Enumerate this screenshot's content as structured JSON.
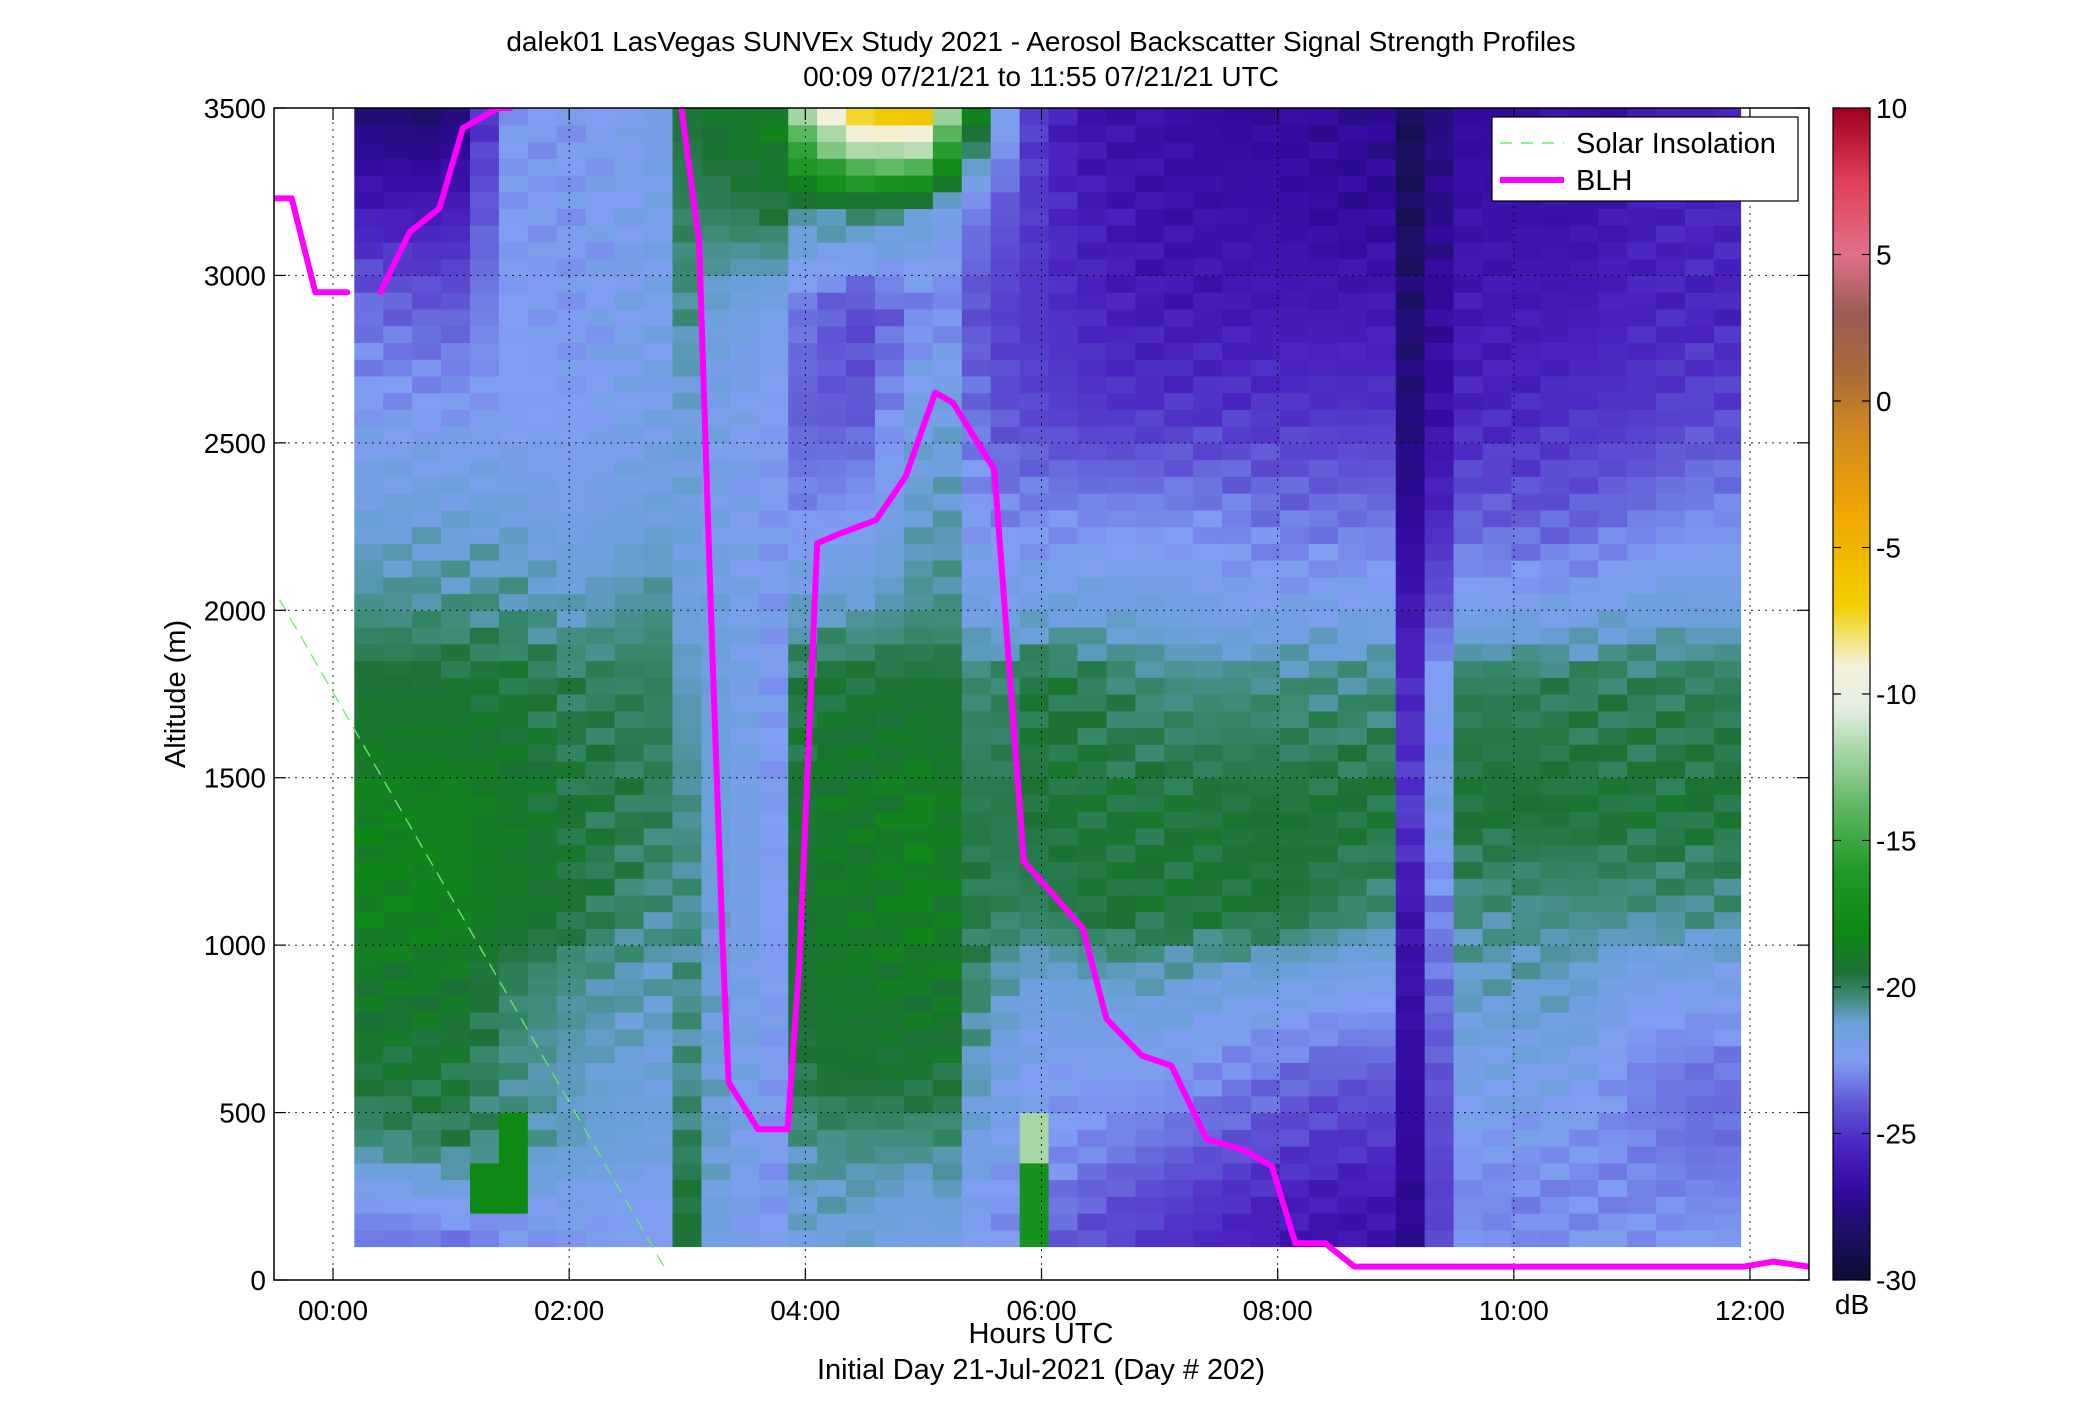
{
  "chart_data": {
    "type": "heatmap",
    "title": "dalek01 LasVegas SUNVEx Study 2021 - Aerosol Backscatter Signal Strength Profiles",
    "subtitle": "00:09 07/21/21 to 11:55 07/21/21  UTC",
    "xlabel": "Hours UTC",
    "xlabel2": "Initial Day 21-Jul-2021 (Day # 202)",
    "ylabel": "Altitude (m)",
    "xlim": [
      -0.5,
      12.5
    ],
    "ylim": [
      0,
      3500
    ],
    "xticks": [
      0,
      2,
      4,
      6,
      8,
      10,
      12
    ],
    "xtick_labels": [
      "00:00",
      "02:00",
      "04:00",
      "06:00",
      "08:00",
      "10:00",
      "12:00"
    ],
    "yticks": [
      0,
      500,
      1000,
      1500,
      2000,
      2500,
      3000,
      3500
    ],
    "ytick_labels": [
      "0",
      "500",
      "1000",
      "1500",
      "2000",
      "2500",
      "3000",
      "3500"
    ],
    "grid": true,
    "legend_position": "top-right",
    "colorbar": {
      "label": "dB",
      "range": [
        -30,
        10
      ],
      "ticks": [
        -30,
        -25,
        -20,
        -15,
        -10,
        -5,
        0,
        5,
        10
      ],
      "tick_labels": [
        "-30",
        "-25",
        "-20",
        "-15",
        "-10",
        "-5",
        "0",
        "5",
        "10"
      ],
      "stops": [
        [
          -30,
          "#0d0d35"
        ],
        [
          -28.5,
          "#1b1060"
        ],
        [
          -27,
          "#320a9e"
        ],
        [
          -25.5,
          "#4a22c0"
        ],
        [
          -24,
          "#6058d6"
        ],
        [
          -22.5,
          "#7f9ef2"
        ],
        [
          -21.2,
          "#6aa0d8"
        ],
        [
          -20.4,
          "#3f8d7c"
        ],
        [
          -19.5,
          "#1c7235"
        ],
        [
          -18,
          "#0d8a13"
        ],
        [
          -16,
          "#229a29"
        ],
        [
          -14,
          "#58b55e"
        ],
        [
          -12,
          "#a5d6a3"
        ],
        [
          -10.5,
          "#e4eee4"
        ],
        [
          -9,
          "#f5f0d8"
        ],
        [
          -7,
          "#f2d000"
        ],
        [
          -4,
          "#f0a800"
        ],
        [
          -1,
          "#d08820"
        ],
        [
          1,
          "#a86a3a"
        ],
        [
          3,
          "#9c5c56"
        ],
        [
          5,
          "#e07088"
        ],
        [
          7.5,
          "#e0405a"
        ],
        [
          10,
          "#a00020"
        ]
      ]
    },
    "heatmap": {
      "x_start": 0.18,
      "x_end": 11.92,
      "y_start": 100,
      "y_end": 3500,
      "bin_height_m": 50,
      "bin_width_h": 0.245,
      "profile_hours": [
        0.0,
        0.25,
        1.0,
        1.5,
        2.0,
        2.75,
        3.0,
        3.3,
        3.75,
        4.0,
        4.5,
        5.0,
        5.25,
        5.5,
        6.0,
        6.5,
        7.0,
        7.5,
        8.0,
        8.5,
        9.0,
        9.15,
        9.5,
        10.0,
        10.5,
        11.0,
        11.5,
        12.0
      ],
      "level_altitudes_m": [
        100,
        250,
        400,
        600,
        900,
        1100,
        1400,
        1800,
        2000,
        2300,
        2600,
        2900,
        3200,
        3500
      ],
      "profiles_db": [
        [
          -23.5,
          -22.5,
          -20.5,
          -19.5,
          -19,
          -18.5,
          -18.5,
          -19.5,
          -20.5,
          -21.5,
          -22.5,
          -23.5,
          -26,
          -28
        ],
        [
          -23.5,
          -22.5,
          -20.5,
          -19.5,
          -19,
          -18.5,
          -18.5,
          -19.5,
          -20.5,
          -21.5,
          -22.5,
          -23.5,
          -26,
          -28
        ],
        [
          -23.5,
          -22,
          -20,
          -19.5,
          -19,
          -18.5,
          -18.5,
          -19.5,
          -20.5,
          -21.5,
          -22.5,
          -24,
          -26,
          -28.5
        ],
        [
          -23,
          -22,
          -20.5,
          -20.5,
          -20,
          -19,
          -19,
          -19.5,
          -20.5,
          -21.5,
          -22.5,
          -22.5,
          -22.5,
          -22.5
        ],
        [
          -22.5,
          -22,
          -21,
          -21,
          -20.5,
          -19.5,
          -19.5,
          -20,
          -21,
          -22,
          -22.5,
          -22.5,
          -22.5,
          -22.5
        ],
        [
          -22.5,
          -22.5,
          -21.5,
          -21.5,
          -21,
          -20.5,
          -20,
          -20,
          -20.5,
          -21.5,
          -22,
          -22,
          -22,
          -22
        ],
        [
          -19.5,
          -19.5,
          -20,
          -20.5,
          -20.5,
          -20.5,
          -20.5,
          -21,
          -21.5,
          -21.5,
          -21.5,
          -20.5,
          -20,
          -19.5
        ],
        [
          -22,
          -22,
          -21.5,
          -21.5,
          -21.5,
          -21.5,
          -21.5,
          -21.5,
          -21.5,
          -22,
          -22,
          -21.5,
          -20,
          -19
        ],
        [
          -22.5,
          -22.5,
          -22.5,
          -22.5,
          -22.5,
          -22.5,
          -22.5,
          -22.5,
          -22.5,
          -22.5,
          -22.5,
          -22,
          -19.5,
          -18.5
        ],
        [
          -21.5,
          -21,
          -20.5,
          -19.5,
          -19,
          -19,
          -19,
          -19.5,
          -21,
          -23,
          -24,
          -23.5,
          -20.5,
          -11
        ],
        [
          -21.5,
          -21,
          -20.5,
          -19.5,
          -19,
          -19,
          -19,
          -19.5,
          -21,
          -22.5,
          -24,
          -24.5,
          -20,
          -5.5
        ],
        [
          -22,
          -21.5,
          -20.5,
          -19.5,
          -19,
          -18.5,
          -18.5,
          -19.5,
          -20.5,
          -21,
          -21.5,
          -23,
          -21,
          -5
        ],
        [
          -22,
          -21,
          -20.5,
          -19.5,
          -19,
          -19,
          -19,
          -19.5,
          -20.5,
          -21,
          -21.5,
          -23,
          -22,
          -13
        ],
        [
          -22.5,
          -22.5,
          -22,
          -21.5,
          -20.5,
          -20,
          -20,
          -20.5,
          -22,
          -23,
          -24,
          -24.5,
          -23.5,
          -19.5
        ],
        [
          -23.5,
          -23,
          -22.5,
          -22.5,
          -21.5,
          -20,
          -19.5,
          -19.5,
          -21.5,
          -23,
          -24.5,
          -25,
          -25,
          -25.5
        ],
        [
          -24.5,
          -24,
          -23,
          -22.5,
          -21,
          -19.5,
          -19.5,
          -20,
          -21.5,
          -23,
          -25,
          -25.5,
          -26,
          -26.5
        ],
        [
          -25,
          -24.5,
          -23.5,
          -22.5,
          -21,
          -19.5,
          -19.5,
          -20.5,
          -21.5,
          -23,
          -25,
          -26,
          -26.5,
          -26.5
        ],
        [
          -25.5,
          -25,
          -24,
          -23,
          -21.5,
          -19.5,
          -19.5,
          -20.5,
          -22,
          -23,
          -25,
          -26,
          -26.5,
          -27
        ],
        [
          -26,
          -25.5,
          -24.5,
          -23.5,
          -21.5,
          -19.5,
          -19.5,
          -20.5,
          -22,
          -23.5,
          -25,
          -26,
          -26.5,
          -27
        ],
        [
          -26.5,
          -26,
          -25,
          -24,
          -22,
          -20,
          -19.5,
          -20.5,
          -22,
          -23.5,
          -25,
          -26,
          -27,
          -27
        ],
        [
          -26.5,
          -26,
          -25,
          -24,
          -22,
          -20.5,
          -19.5,
          -20.5,
          -22,
          -23.5,
          -25,
          -26,
          -27,
          -27.5
        ],
        [
          -27.5,
          -27.5,
          -27.5,
          -27.5,
          -27.5,
          -27.5,
          -26,
          -26.5,
          -27,
          -28,
          -28.5,
          -28.5,
          -29,
          -29
        ],
        [
          -22.5,
          -23,
          -22.5,
          -22,
          -21,
          -20.5,
          -19.5,
          -20,
          -22,
          -24,
          -25.5,
          -26,
          -26.5,
          -27
        ],
        [
          -23,
          -23,
          -22.5,
          -22,
          -21,
          -20.5,
          -19.5,
          -20,
          -22,
          -24,
          -25.5,
          -26,
          -26.5,
          -27
        ],
        [
          -22.5,
          -23,
          -22.5,
          -22,
          -21,
          -20.5,
          -19.5,
          -20,
          -22,
          -24,
          -25,
          -26,
          -26.5,
          -26.5
        ],
        [
          -22.5,
          -23,
          -23,
          -23,
          -22,
          -20.5,
          -19.5,
          -20,
          -21.5,
          -23.5,
          -25,
          -25.5,
          -26,
          -26.5
        ],
        [
          -22.5,
          -23,
          -23.5,
          -23.5,
          -22,
          -20.5,
          -19.5,
          -20,
          -21.5,
          -23,
          -24.5,
          -25.5,
          -25.5,
          -25.5
        ],
        [
          -22.5,
          -23,
          -23.5,
          -23.5,
          -22,
          -20.5,
          -19.5,
          -20,
          -21.5,
          -23,
          -24.5,
          -25.5,
          -25.5,
          -25.5
        ]
      ],
      "patches": [
        {
          "x": [
            5.9,
            6.15
          ],
          "y": [
            350,
            500
          ],
          "db": -12
        },
        {
          "x": [
            5.9,
            6.15
          ],
          "y": [
            100,
            350
          ],
          "db": -17
        },
        {
          "x": [
            1.2,
            1.65
          ],
          "y": [
            200,
            350
          ],
          "db": -18
        },
        {
          "x": [
            1.45,
            1.65
          ],
          "y": [
            350,
            500
          ],
          "db": -18
        }
      ]
    },
    "series": [
      {
        "name": "Solar Insolation",
        "style": "dashed",
        "color": "#66ee66",
        "x": [
          -0.45,
          2.82
        ],
        "y": [
          2030,
          30
        ]
      },
      {
        "name": "BLH",
        "style": "solid",
        "color": "#ff00ff",
        "segments": [
          {
            "x": [
              -0.5,
              -0.35,
              -0.15,
              0.12
            ],
            "y": [
              3230,
              3230,
              2950,
              2950
            ]
          },
          {
            "x": [
              0.4,
              0.65,
              0.9,
              1.1,
              1.4,
              1.5
            ],
            "y": [
              2950,
              3130,
              3200,
              3440,
              3500,
              3500
            ]
          },
          {
            "x": [
              2.95,
              3.1,
              3.2,
              3.3,
              3.35,
              3.6,
              3.85,
              3.95,
              4.1,
              4.3,
              4.6,
              4.85,
              5.1,
              5.25,
              5.6,
              5.85,
              6.1,
              6.35,
              6.55,
              6.85,
              7.1,
              7.4,
              7.7,
              7.95,
              8.15,
              8.4,
              8.65,
              9.0,
              9.5,
              10.0,
              10.5,
              11.0,
              11.5,
              11.95,
              12.2,
              12.5
            ],
            "y": [
              3500,
              3100,
              2000,
              1000,
              590,
              450,
              450,
              950,
              2200,
              2230,
              2270,
              2400,
              2650,
              2620,
              2420,
              1250,
              1150,
              1050,
              780,
              670,
              640,
              420,
              390,
              340,
              110,
              110,
              40,
              40,
              40,
              40,
              40,
              40,
              40,
              40,
              55,
              40
            ]
          }
        ]
      }
    ]
  }
}
